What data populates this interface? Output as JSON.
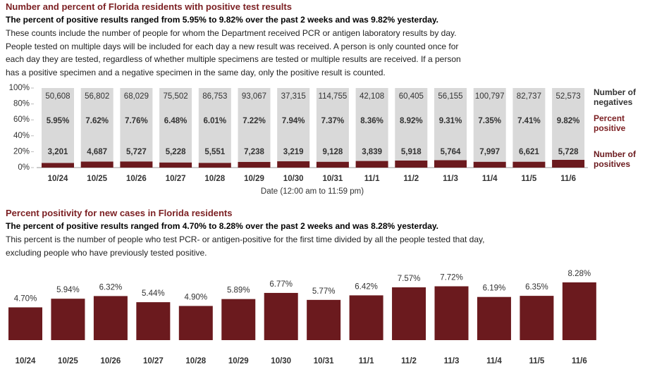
{
  "chart_data": [
    {
      "type": "stacked-bar-100",
      "title": "Number and percent of Florida residents with positive test results",
      "subtitle": "The percent of positive results ranged from 5.95% to 9.82% over the past 2 weeks and was 9.82% yesterday.",
      "paragraph": [
        "These counts include the number of people for whom the Department received PCR or antigen laboratory results by day.",
        "People tested on multiple days will be included for each day a new result was received. A person is only counted once for",
        "each day they are tested, regardless of whether multiple specimens are tested or multiple results are received. If a person",
        "has a positive specimen and a negative specimen in the same day, only the positive result is counted."
      ],
      "x_label": "Date (12:00 am to 11:59 pm)",
      "categories": [
        "10/24",
        "10/25",
        "10/26",
        "10/27",
        "10/28",
        "10/29",
        "10/30",
        "10/31",
        "11/1",
        "11/2",
        "11/3",
        "11/4",
        "11/5",
        "11/6"
      ],
      "series": [
        {
          "name": "Number of negatives",
          "color": "#d9d9d9",
          "values": [
            50608,
            56802,
            68029,
            75502,
            86753,
            93067,
            37315,
            114755,
            42108,
            60405,
            56155,
            100797,
            82737,
            52573
          ],
          "value_labels": [
            "50,608",
            "56,802",
            "68,029",
            "75,502",
            "86,753",
            "93,067",
            "37,315",
            "114,755",
            "42,108",
            "60,405",
            "56,155",
            "100,797",
            "82,737",
            "52,573"
          ]
        },
        {
          "name": "Percent positive",
          "color": "#7b1f22",
          "values": [
            5.95,
            7.62,
            7.76,
            6.48,
            6.01,
            7.22,
            7.94,
            7.37,
            8.36,
            8.92,
            9.31,
            7.35,
            7.41,
            9.82
          ],
          "value_labels": [
            "5.95%",
            "7.62%",
            "7.76%",
            "6.48%",
            "6.01%",
            "7.22%",
            "7.94%",
            "7.37%",
            "8.36%",
            "8.92%",
            "9.31%",
            "7.35%",
            "7.41%",
            "9.82%"
          ]
        },
        {
          "name": "Number of positives",
          "color": "#6b1a1e",
          "values": [
            3201,
            4687,
            5727,
            5228,
            5551,
            7238,
            3219,
            9128,
            3839,
            5918,
            5764,
            7997,
            6621,
            5728
          ],
          "value_labels": [
            "3,201",
            "4,687",
            "5,727",
            "5,228",
            "5,551",
            "7,238",
            "3,219",
            "9,128",
            "3,839",
            "5,918",
            "5,764",
            "7,997",
            "6,621",
            "5,728"
          ]
        }
      ],
      "ylim": [
        0,
        100
      ],
      "yticks": [
        {
          "value": 0,
          "label": "0%"
        },
        {
          "value": 20,
          "label": "20%"
        },
        {
          "value": 40,
          "label": "40%"
        },
        {
          "value": 60,
          "label": "60%"
        },
        {
          "value": 80,
          "label": "80%"
        },
        {
          "value": 100,
          "label": "100%"
        }
      ]
    },
    {
      "type": "bar",
      "title": "Percent positivity for new cases in Florida residents",
      "subtitle": "The percent of positive results ranged from 4.70% to 8.28% over the past 2 weeks and was 8.28% yesterday.",
      "paragraph": [
        "This percent is the number of people who test PCR- or antigen-positive for the first time divided by all the people tested that day,",
        "excluding people who have previously tested positive."
      ],
      "categories": [
        "10/24",
        "10/25",
        "10/26",
        "10/27",
        "10/28",
        "10/29",
        "10/30",
        "10/31",
        "11/1",
        "11/2",
        "11/3",
        "11/4",
        "11/5",
        "11/6"
      ],
      "values": [
        4.7,
        5.94,
        6.32,
        5.44,
        4.9,
        5.89,
        6.77,
        5.77,
        6.42,
        7.57,
        7.72,
        6.19,
        6.35,
        8.28
      ],
      "value_labels": [
        "4.70%",
        "5.94%",
        "6.32%",
        "5.44%",
        "4.90%",
        "5.89%",
        "6.77%",
        "5.77%",
        "6.42%",
        "7.57%",
        "7.72%",
        "6.19%",
        "6.35%",
        "8.28%"
      ],
      "color": "#6b1a1e"
    }
  ]
}
